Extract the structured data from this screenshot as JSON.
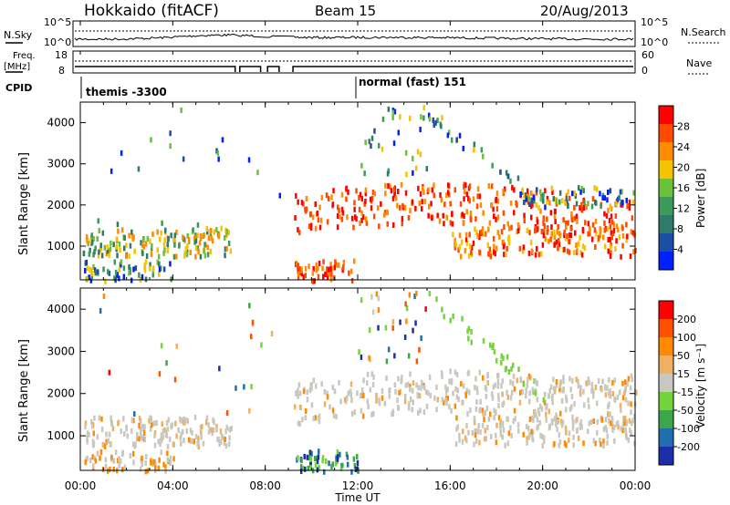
{
  "header": {
    "station": "Hokkaido (fitACF)",
    "beam": "Beam 15",
    "date": "20/Aug/2013"
  },
  "panels": {
    "nsky_label": "N.Sky",
    "nsky_ticks": [
      "10^5",
      "10^0"
    ],
    "nsearch_label": "N.Search",
    "nsearch_ticks": [
      "10^5",
      "10^0"
    ],
    "freq_label_1": "Freq.",
    "freq_label_2": "[MHz]",
    "freq_ticks": [
      "18",
      "8"
    ],
    "nave_label": "Nave",
    "nave_ticks": [
      "60",
      "0"
    ],
    "cpid_label": "CPID",
    "cpid_1": "themis -3300",
    "cpid_2": "normal (fast) 151"
  },
  "colors": {
    "power": [
      "#0020ff",
      "#1d4ea6",
      "#2f7a6a",
      "#3c9a5a",
      "#6cc13a",
      "#f5c400",
      "#ff8c00",
      "#ff4a00",
      "#ff0000"
    ],
    "velocity": [
      "#1c2fa8",
      "#1f6fb0",
      "#3aa84a",
      "#74d43c",
      "#c8c8c0",
      "#f0b060",
      "#ff8a00",
      "#ff5000",
      "#ff0000"
    ]
  },
  "chart_data": [
    {
      "type": "heatmap",
      "title": "Power",
      "ylabel": "Slant Range [km]",
      "ylim": [
        180,
        4500
      ],
      "yticks": [
        1000,
        2000,
        3000,
        4000
      ],
      "colorbar_label": "Power [dB]",
      "colorbar_ticks": [
        "28",
        "24",
        "20",
        "16",
        "12",
        "8",
        "4"
      ]
    },
    {
      "type": "heatmap",
      "title": "Velocity",
      "ylabel": "Slant Range [km]",
      "ylim": [
        180,
        4500
      ],
      "yticks": [
        1000,
        2000,
        3000,
        4000
      ],
      "xlabel": "Time UT",
      "xticks": [
        "00:00",
        "04:00",
        "08:00",
        "12:00",
        "16:00",
        "20:00",
        "00:00"
      ],
      "xlim": [
        0,
        24
      ],
      "colorbar_label": "Velocity [m s⁻¹]",
      "colorbar_ticks": [
        "200",
        "100",
        "50",
        "15",
        "-15",
        "-50",
        "-100",
        "-200"
      ]
    }
  ]
}
